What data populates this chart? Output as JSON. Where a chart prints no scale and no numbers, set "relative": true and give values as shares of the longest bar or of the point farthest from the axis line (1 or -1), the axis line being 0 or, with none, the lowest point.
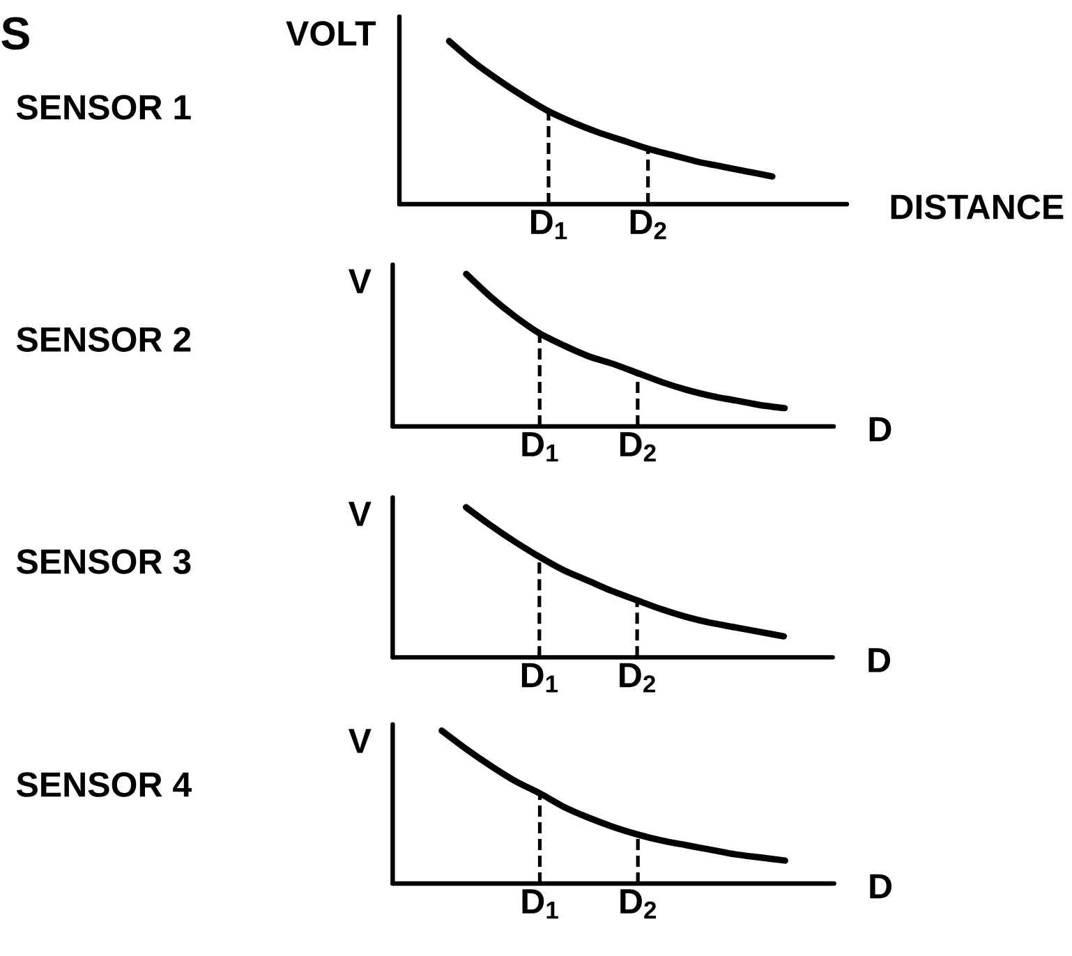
{
  "chart_data": [
    {
      "type": "line",
      "title": "SENSOR 1",
      "xlabel": "DISTANCE",
      "ylabel": "VOLT",
      "relative": true,
      "tick_labels": "x",
      "annotations": [
        "S"
      ],
      "categories": [
        null,
        null,
        null,
        null,
        null,
        null,
        "D$_{1}$",
        null,
        null,
        null,
        "D$_{2}$",
        null,
        null,
        null,
        null,
        null,
        null,
        null,
        null
      ],
      "series": [
        {
          "color": "#000000",
          "values": [
            null,
            null,
            1,
            0.87,
            0.76,
            0.66,
            0.57,
            0.5,
            0.44,
            0.39,
            0.34,
            0.3,
            0.26,
            0.23,
            0.2,
            0.17,
            null,
            null,
            null
          ]
        }
      ],
      "ref_lines": [
        {
          "axis": "x",
          "value": "D$_{1}$",
          "color": "#000000",
          "line_style": "dashed"
        },
        {
          "axis": "x",
          "value": "D$_{2}$",
          "color": "#000000",
          "line_style": "dashed"
        }
      ]
    },
    {
      "type": "line",
      "title": "SENSOR 2",
      "xlabel": "D",
      "ylabel": "V",
      "relative": true,
      "tick_labels": "x",
      "categories": [
        null,
        null,
        null,
        null,
        null,
        null,
        "D$_{1}$",
        null,
        null,
        null,
        "D$_{2}$",
        null,
        null,
        null,
        null,
        null,
        null,
        null,
        null
      ],
      "series": [
        {
          "color": "#000000",
          "values": [
            null,
            null,
            null,
            1,
            0.85,
            0.72,
            0.61,
            0.53,
            0.46,
            0.41,
            0.35,
            0.29,
            0.24,
            0.2,
            0.17,
            0.14,
            0.12,
            null,
            null
          ]
        }
      ],
      "ref_lines": [
        {
          "axis": "x",
          "value": "D$_{1}$",
          "color": "#000000",
          "line_style": "dashed"
        },
        {
          "axis": "x",
          "value": "D$_{2}$",
          "color": "#000000",
          "line_style": "dashed"
        }
      ]
    },
    {
      "type": "line",
      "title": "SENSOR 3",
      "xlabel": "D",
      "ylabel": "V",
      "relative": true,
      "tick_labels": "x",
      "categories": [
        null,
        null,
        null,
        null,
        null,
        null,
        "D$_{1}$",
        null,
        null,
        null,
        "D$_{2}$",
        null,
        null,
        null,
        null,
        null,
        null,
        null,
        null
      ],
      "series": [
        {
          "color": "#000000",
          "values": [
            null,
            null,
            null,
            1,
            0.88,
            0.77,
            0.67,
            0.58,
            0.51,
            0.44,
            0.38,
            0.32,
            0.27,
            0.23,
            0.2,
            0.17,
            0.14,
            null,
            null
          ]
        }
      ],
      "ref_lines": [
        {
          "axis": "x",
          "value": "D$_{1}$",
          "color": "#000000",
          "line_style": "dashed"
        },
        {
          "axis": "x",
          "value": "D$_{2}$",
          "color": "#000000",
          "line_style": "dashed"
        }
      ]
    },
    {
      "type": "line",
      "title": "SENSOR 4",
      "xlabel": "D",
      "ylabel": "V",
      "relative": true,
      "tick_labels": "x",
      "categories": [
        null,
        null,
        null,
        null,
        null,
        null,
        "D$_{1}$",
        null,
        null,
        null,
        "D$_{2}$",
        null,
        null,
        null,
        null,
        null,
        null,
        null,
        null
      ],
      "series": [
        {
          "color": "#000000",
          "values": [
            null,
            null,
            1,
            0.88,
            0.77,
            0.67,
            0.59,
            0.5,
            0.43,
            0.37,
            0.32,
            0.28,
            0.25,
            0.22,
            0.19,
            0.17,
            0.15,
            null,
            null
          ]
        }
      ],
      "ref_lines": [
        {
          "axis": "x",
          "value": "D$_{1}$",
          "color": "#000000",
          "line_style": "dashed"
        },
        {
          "axis": "x",
          "value": "D$_{2}$",
          "color": "#000000",
          "line_style": "dashed"
        }
      ]
    }
  ]
}
